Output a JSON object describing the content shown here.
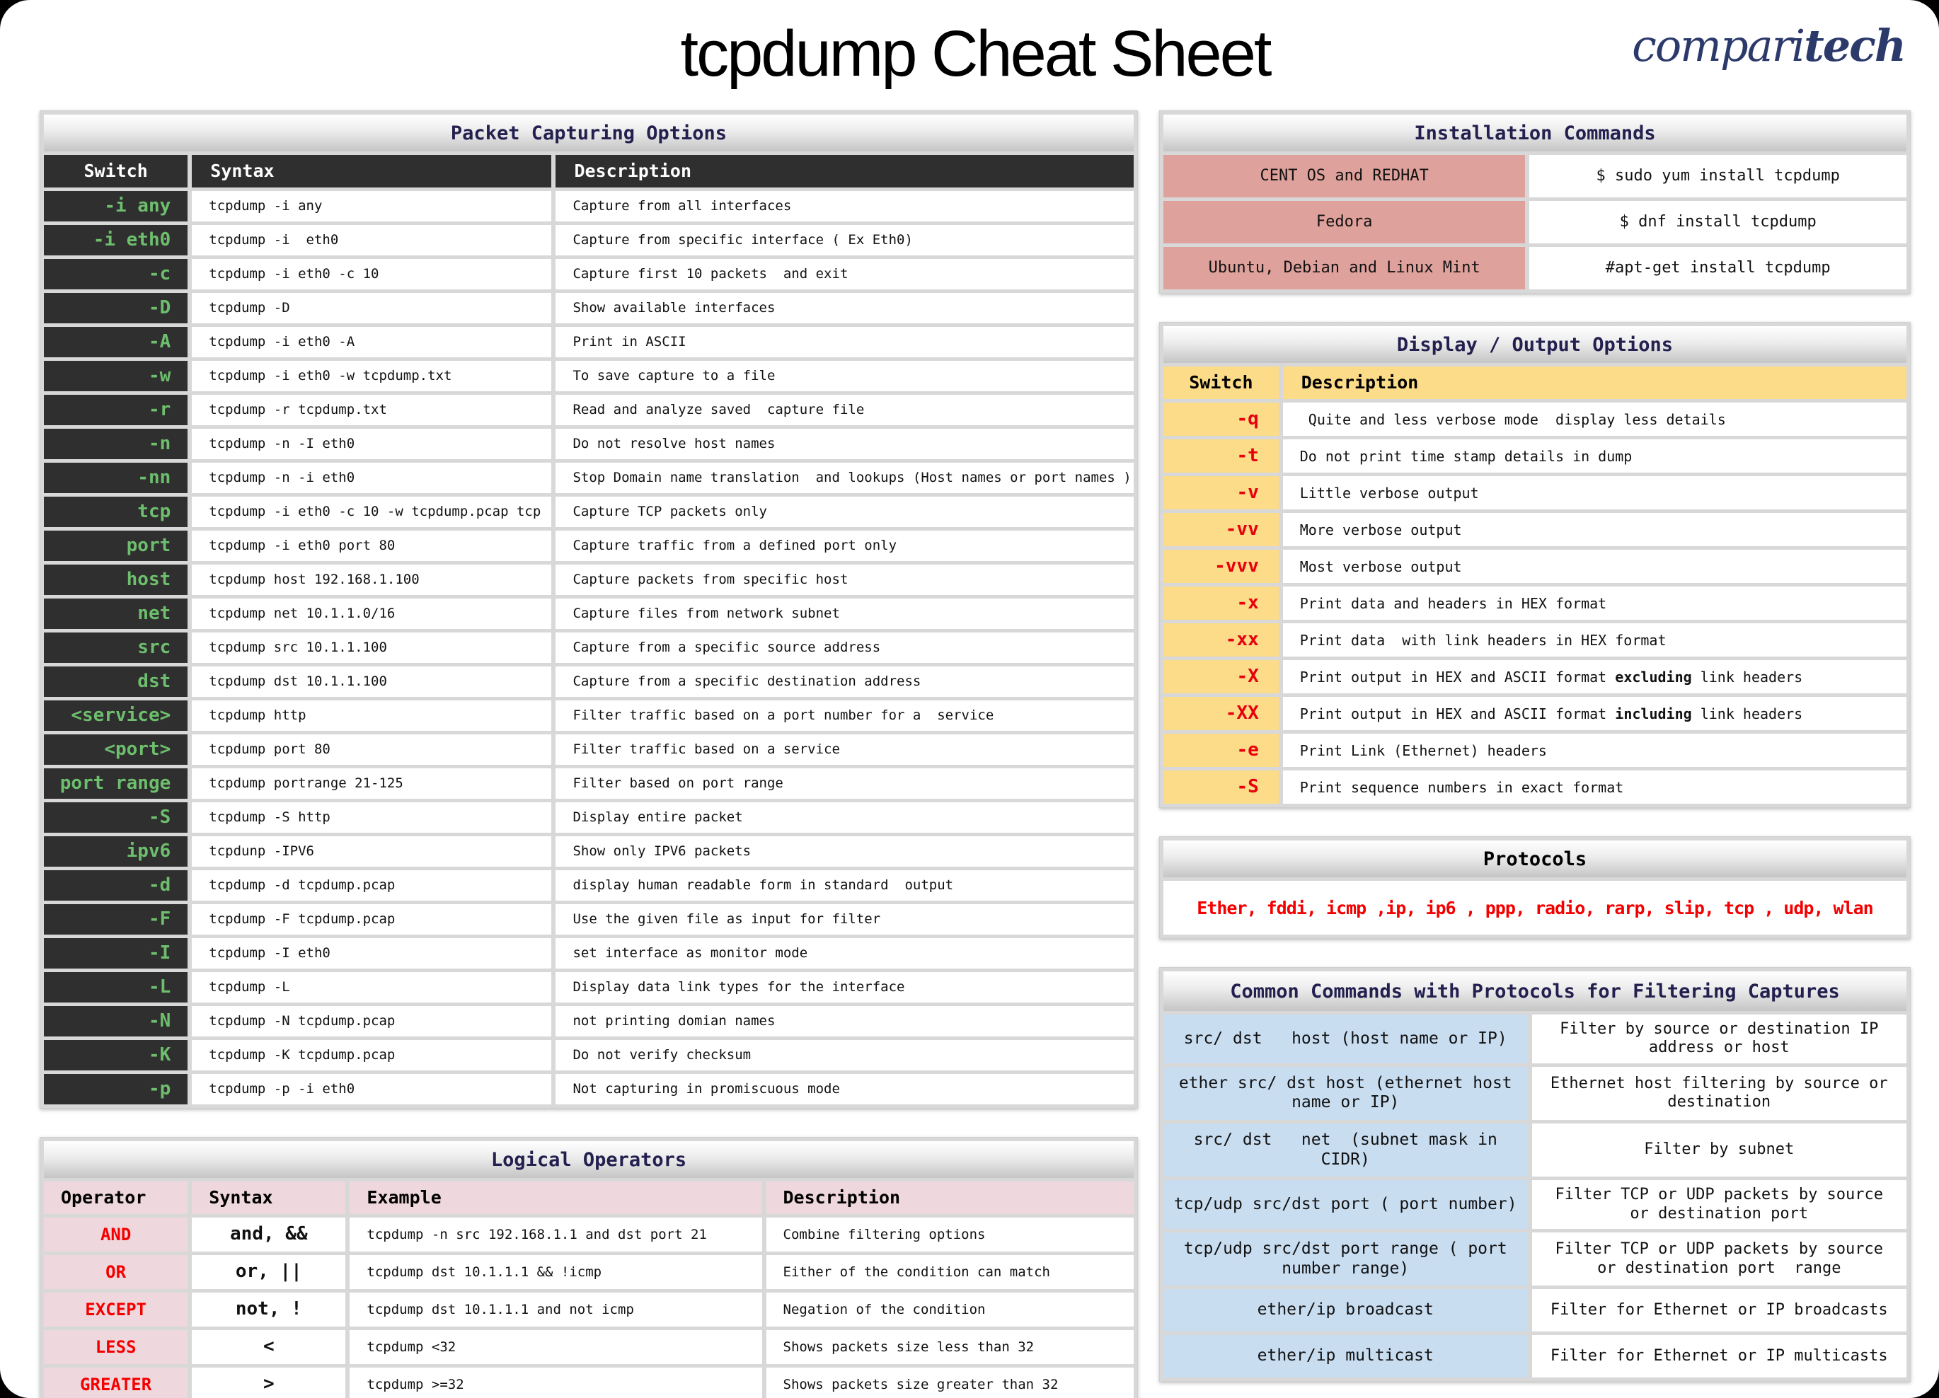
{
  "page": {
    "title": "tcpdump Cheat Sheet",
    "logo_light": "compari",
    "logo_bold": "tech"
  },
  "colors": {
    "navy": "#23204f",
    "dark": "#2f2f2f",
    "green": "#6dbe6d",
    "pink": "#efd8dd",
    "red": "#f50000",
    "red2": "#e8000d",
    "salmon": "#dfa19b",
    "yellow": "#fcdc88",
    "blue": "#c9ddf1",
    "logo_navy": "#2b3a6b"
  },
  "packet_options": {
    "title": "Packet Capturing Options",
    "headers": [
      "Switch",
      "Syntax",
      "Description"
    ],
    "cols": [
      {
        "name": "switch-cell",
        "cls": "sw"
      },
      {
        "name": "syntax-cell",
        "cls": "syn"
      },
      {
        "name": "description-cell",
        "cls": "desc"
      }
    ],
    "rows": [
      [
        "-i any",
        "tcpdump -i any",
        "Capture from all interfaces"
      ],
      [
        "-i eth0",
        "tcpdump -i  eth0",
        "Capture from specific interface ( Ex Eth0)"
      ],
      [
        "-c",
        "tcpdump -i eth0 -c 10",
        "Capture first 10 packets  and exit"
      ],
      [
        "-D",
        "tcpdump -D",
        "Show available interfaces"
      ],
      [
        "-A",
        "tcpdump -i eth0 -A",
        "Print in ASCII"
      ],
      [
        "-w",
        "tcpdump -i eth0 -w tcpdump.txt",
        "To save capture to a file"
      ],
      [
        "-r",
        "tcpdump -r tcpdump.txt",
        "Read and analyze saved  capture file"
      ],
      [
        "-n",
        "tcpdump -n -I eth0",
        "Do not resolve host names"
      ],
      [
        "-nn",
        "tcpdump -n -i eth0",
        "Stop Domain name translation  and lookups (Host names or port names )"
      ],
      [
        "tcp",
        "tcpdump -i eth0 -c 10 -w tcpdump.pcap tcp",
        "Capture TCP packets only"
      ],
      [
        "port",
        "tcpdump -i eth0 port 80",
        "Capture traffic from a defined port only"
      ],
      [
        "host",
        "tcpdump host 192.168.1.100",
        "Capture packets from specific host"
      ],
      [
        "net",
        "tcpdump net 10.1.1.0/16",
        "Capture files from network subnet"
      ],
      [
        "src",
        "tcpdump src 10.1.1.100",
        "Capture from a specific source address"
      ],
      [
        "dst",
        "tcpdump dst 10.1.1.100",
        "Capture from a specific destination address"
      ],
      [
        "<service>",
        "tcpdump http",
        "Filter traffic based on a port number for a  service"
      ],
      [
        "<port>",
        "tcpdump port 80",
        "Filter traffic based on a service"
      ],
      [
        "port range",
        "tcpdump portrange 21-125",
        "Filter based on port range"
      ],
      [
        "-S",
        "tcpdump -S http",
        "Display entire packet"
      ],
      [
        "ipv6",
        "tcpdunp -IPV6",
        "Show only IPV6 packets"
      ],
      [
        "-d",
        "tcpdump -d tcpdump.pcap",
        "display human readable form in standard  output"
      ],
      [
        "-F",
        "tcpdump -F tcpdump.pcap",
        "Use the given file as input for filter"
      ],
      [
        "-I",
        "tcpdump -I eth0",
        "set interface as monitor mode"
      ],
      [
        "-L",
        "tcpdump -L",
        "Display data link types for the interface"
      ],
      [
        "-N",
        "tcpdump -N tcpdump.pcap",
        "not printing domian names"
      ],
      [
        "-K",
        "tcpdump -K tcpdump.pcap",
        "Do not verify checksum"
      ],
      [
        "-p",
        "tcpdump -p -i eth0",
        "Not capturing in promiscuous mode"
      ]
    ]
  },
  "logical_operators": {
    "title": "Logical Operators",
    "headers": [
      "Operator",
      "Syntax",
      "Example",
      "Description"
    ],
    "cols": [
      {
        "name": "operator-cell",
        "cls": "op"
      },
      {
        "name": "operator-syntax-cell",
        "cls": "osyn"
      },
      {
        "name": "example-cell",
        "cls": "ex"
      },
      {
        "name": "description-cell",
        "cls": "desc"
      }
    ],
    "rows": [
      [
        "AND",
        "and, &&",
        "tcpdump -n src 192.168.1.1 and dst port 21",
        "Combine filtering options"
      ],
      [
        "OR",
        "or, ||",
        "tcpdump dst 10.1.1.1 && !icmp",
        "Either of the condition can match"
      ],
      [
        "EXCEPT",
        "not, !",
        "tcpdump dst 10.1.1.1 and not icmp",
        "Negation of the condition"
      ],
      [
        "LESS",
        "<",
        "tcpdump <32",
        "Shows packets size less than 32"
      ],
      [
        "GREATER",
        ">",
        "tcpdump >=32",
        "Shows packets size greater than 32"
      ]
    ]
  },
  "installation": {
    "title": "Installation Commands",
    "cols": [
      {
        "name": "os-cell",
        "cls": "os"
      },
      {
        "name": "command-cell",
        "cls": "cmd"
      }
    ],
    "rows": [
      [
        "CENT OS and REDHAT",
        "$ sudo yum install tcpdump"
      ],
      [
        "Fedora",
        "$ dnf install tcpdump"
      ],
      [
        "Ubuntu, Debian and Linux Mint",
        "#apt-get install tcpdump"
      ]
    ]
  },
  "display_options": {
    "title": "Display / Output Options",
    "headers": [
      "Switch",
      "Description"
    ],
    "cols": [
      {
        "name": "switch-cell",
        "cls": "sw",
        "key": "sw"
      },
      {
        "name": "description-cell",
        "cls": "desc",
        "key": "desc"
      }
    ],
    "rows": [
      {
        "sw": "-q",
        "desc": " Quite and less verbose mode  display less details"
      },
      {
        "sw": "-t",
        "desc": "Do not print time stamp details in dump"
      },
      {
        "sw": "-v",
        "desc": "Little verbose output"
      },
      {
        "sw": "-vv",
        "desc": "More verbose output"
      },
      {
        "sw": "-vvv",
        "desc": "Most verbose output"
      },
      {
        "sw": "-x",
        "desc": "Print data and headers in HEX format"
      },
      {
        "sw": "-xx",
        "desc": "Print data  with link headers in HEX format"
      },
      {
        "sw": "-X",
        "desc": "Print output in HEX and ASCII format excluding link headers",
        "bold": "excluding"
      },
      {
        "sw": "-XX",
        "desc": "Print output in HEX and ASCII format including link headers",
        "bold": "including"
      },
      {
        "sw": "-e",
        "desc": "Print Link (Ethernet) headers"
      },
      {
        "sw": "-S",
        "desc": "Print sequence numbers in exact format"
      }
    ]
  },
  "protocols": {
    "title": "Protocols",
    "list": "Ether, fddi, icmp ,ip, ip6 , ppp, radio, rarp, slip, tcp , udp, wlan"
  },
  "filter_commands": {
    "title": "Common Commands with Protocols for Filtering Captures",
    "cols": [
      {
        "name": "command-cell",
        "cls": "cmd"
      },
      {
        "name": "description-cell",
        "cls": "desc"
      }
    ],
    "rows": [
      [
        "src/ dst   host (host name or IP)",
        "Filter by source or destination IP address or host"
      ],
      [
        "ether src/ dst host (ethernet host name or IP)",
        "Ethernet host filtering by source or destination"
      ],
      [
        "src/ dst   net  (subnet mask in CIDR)",
        "Filter by subnet"
      ],
      [
        "tcp/udp src/dst port ( port number)",
        "Filter TCP or UDP packets by source or destination port"
      ],
      [
        "tcp/udp src/dst port range ( port number range)",
        "Filter TCP or UDP packets by source or destination port  range"
      ],
      [
        "ether/ip broadcast",
        "Filter for Ethernet or IP broadcasts"
      ],
      [
        "ether/ip multicast",
        "Filter for Ethernet or IP multicasts"
      ]
    ]
  }
}
